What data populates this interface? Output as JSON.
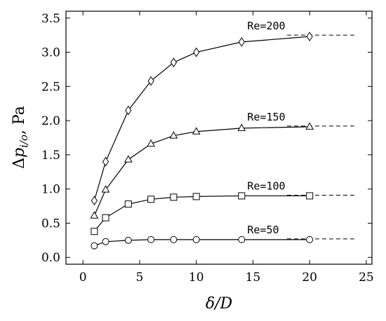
{
  "chart_data": {
    "type": "line",
    "xlabel": "δ/D",
    "ylabel": "Δp_{i/o}, Pa",
    "xlim": [
      -1.5,
      25.5
    ],
    "ylim": [
      -0.1,
      3.6
    ],
    "xticks": [
      0,
      5,
      10,
      15,
      20,
      25
    ],
    "yticks": [
      0.0,
      0.5,
      1.0,
      1.5,
      2.0,
      2.5,
      3.0,
      3.5
    ],
    "grid": false,
    "legend": "inline labels near series ends",
    "series": [
      {
        "name": "Re=200",
        "marker": "diamond",
        "x": [
          1,
          2,
          4,
          6,
          8,
          10,
          14,
          20
        ],
        "y": [
          0.83,
          1.4,
          2.15,
          2.58,
          2.85,
          3.0,
          3.15,
          3.23
        ],
        "asymptote": 3.25
      },
      {
        "name": "Re=150",
        "marker": "triangle",
        "x": [
          1,
          2,
          4,
          6,
          8,
          10,
          14,
          20
        ],
        "y": [
          0.61,
          0.99,
          1.43,
          1.66,
          1.78,
          1.84,
          1.89,
          1.91
        ],
        "asymptote": 1.92
      },
      {
        "name": "Re=100",
        "marker": "square",
        "x": [
          1,
          2,
          4,
          6,
          8,
          10,
          14,
          20
        ],
        "y": [
          0.38,
          0.58,
          0.78,
          0.85,
          0.88,
          0.89,
          0.9,
          0.9
        ],
        "asymptote": 0.91
      },
      {
        "name": "Re=50",
        "marker": "circle",
        "x": [
          1,
          2,
          4,
          6,
          8,
          10,
          14,
          20
        ],
        "y": [
          0.17,
          0.23,
          0.25,
          0.26,
          0.26,
          0.26,
          0.26,
          0.26
        ],
        "asymptote": 0.27
      }
    ]
  }
}
